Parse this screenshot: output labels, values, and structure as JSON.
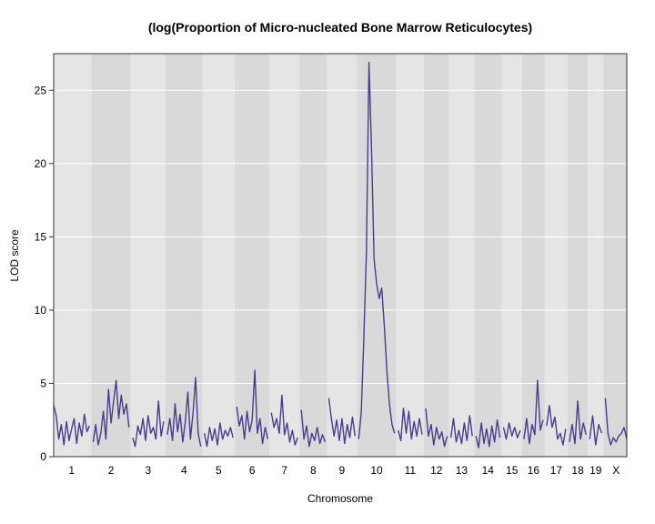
{
  "chart_data": {
    "type": "line",
    "title": "(log(Proportion of Micro-nucleated Bone Marrow Reticulocytes)",
    "xlabel": "Chromosome",
    "ylabel": "LOD score",
    "ylim": [
      0,
      27.5
    ],
    "yticks": [
      "0",
      "5",
      "10",
      "15",
      "20",
      "25"
    ],
    "chromosomes": [
      "1",
      "2",
      "3",
      "4",
      "5",
      "6",
      "7",
      "8",
      "9",
      "10",
      "11",
      "12",
      "13",
      "14",
      "15",
      "16",
      "17",
      "18",
      "19",
      "X"
    ],
    "grid": true,
    "line_color": "#483D8B",
    "band_colors": [
      "#E5E5E5",
      "#D9D9D9"
    ],
    "series": [
      {
        "chromosome": "1",
        "values": [
          3.5,
          2.8,
          1.2,
          2.2,
          0.8,
          2.4,
          1.1,
          1.9,
          2.6,
          0.9,
          2.3,
          1.4,
          2.9,
          1.7,
          2.1
        ]
      },
      {
        "chromosome": "2",
        "values": [
          1.0,
          2.2,
          0.8,
          1.6,
          3.1,
          1.2,
          4.6,
          2.3,
          3.8,
          5.2,
          2.6,
          4.2,
          2.9,
          3.6,
          2.0
        ]
      },
      {
        "chromosome": "3",
        "values": [
          1.3,
          0.7,
          2.1,
          1.5,
          2.6,
          1.1,
          2.8,
          1.6,
          2.0,
          1.2,
          3.8,
          1.4,
          2.4
        ]
      },
      {
        "chromosome": "4",
        "values": [
          1.5,
          2.6,
          1.1,
          3.6,
          1.7,
          2.9,
          1.0,
          2.4,
          4.4,
          1.2,
          3.0,
          5.4,
          1.6,
          0.7
        ]
      },
      {
        "chromosome": "5",
        "values": [
          1.6,
          0.7,
          2.0,
          1.1,
          1.9,
          0.8,
          2.3,
          1.2,
          1.8,
          1.4,
          2.0,
          1.3
        ]
      },
      {
        "chromosome": "6",
        "values": [
          3.4,
          2.1,
          2.8,
          1.2,
          3.1,
          1.7,
          2.5,
          5.9,
          1.6,
          2.6,
          0.9,
          2.0,
          1.2
        ]
      },
      {
        "chromosome": "7",
        "values": [
          3.0,
          2.0,
          2.6,
          1.6,
          4.2,
          1.5,
          2.3,
          1.0,
          1.8,
          0.8,
          1.3
        ]
      },
      {
        "chromosome": "8",
        "values": [
          3.2,
          1.2,
          2.1,
          0.7,
          1.6,
          1.1,
          2.0,
          0.9,
          1.5,
          1.0
        ]
      },
      {
        "chromosome": "9",
        "values": [
          4.0,
          2.6,
          1.4,
          2.5,
          1.1,
          2.6,
          0.9,
          2.2,
          1.3,
          2.7,
          1.4
        ]
      },
      {
        "chromosome": "10",
        "values": [
          1.2,
          3.0,
          8.0,
          14.0,
          26.9,
          21.0,
          13.5,
          11.8,
          10.8,
          11.5,
          9.0,
          5.8,
          3.6,
          2.2,
          1.6
        ]
      },
      {
        "chromosome": "11",
        "values": [
          1.8,
          1.1,
          3.3,
          1.6,
          3.1,
          1.2,
          2.4,
          1.4,
          2.6,
          1.5
        ]
      },
      {
        "chromosome": "12",
        "values": [
          3.3,
          1.4,
          2.2,
          0.8,
          2.0,
          1.2,
          1.7,
          0.7,
          1.4
        ]
      },
      {
        "chromosome": "13",
        "values": [
          1.3,
          2.6,
          1.0,
          1.8,
          0.9,
          2.3,
          1.1,
          2.8,
          1.4
        ]
      },
      {
        "chromosome": "14",
        "values": [
          1.4,
          0.6,
          2.3,
          0.9,
          1.9,
          0.7,
          2.1,
          1.0,
          2.5,
          1.3
        ]
      },
      {
        "chromosome": "15",
        "values": [
          2.0,
          1.2,
          2.3,
          1.4,
          2.0,
          1.3,
          1.8
        ]
      },
      {
        "chromosome": "16",
        "values": [
          1.2,
          2.6,
          0.9,
          2.2,
          1.5,
          5.2,
          1.8,
          2.5
        ]
      },
      {
        "chromosome": "17",
        "values": [
          2.1,
          3.5,
          2.0,
          2.7,
          1.2,
          1.6,
          0.8,
          1.9
        ]
      },
      {
        "chromosome": "18",
        "values": [
          1.0,
          2.2,
          0.9,
          3.8,
          1.2,
          2.3,
          1.5
        ]
      },
      {
        "chromosome": "19",
        "values": [
          1.2,
          2.8,
          0.8,
          2.2,
          1.6
        ]
      },
      {
        "chromosome": "X",
        "values": [
          4.0,
          1.6,
          0.8,
          1.3,
          1.0,
          1.4,
          1.6,
          2.0,
          1.2
        ]
      }
    ]
  }
}
